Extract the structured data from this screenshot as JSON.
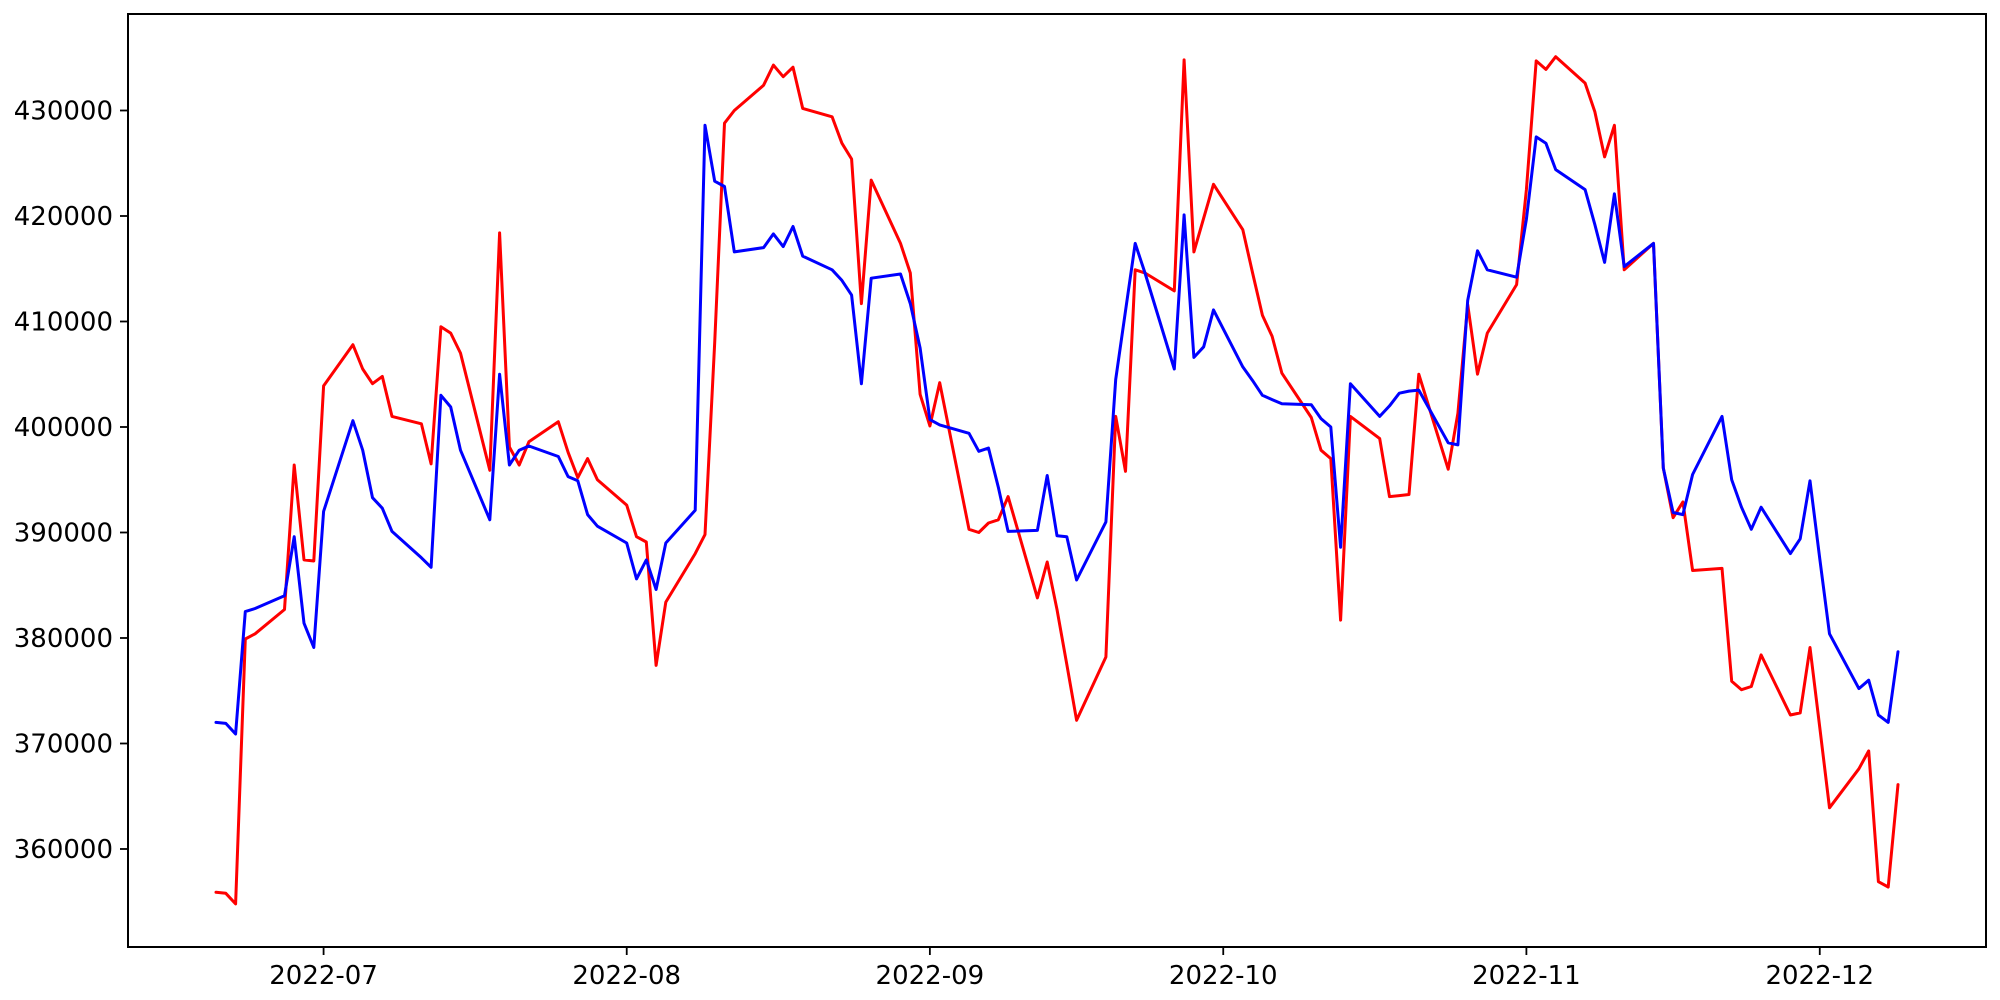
{
  "figure": {
    "background": "#ffffff",
    "axis_color": "#000000"
  },
  "chart_data": {
    "type": "line",
    "title": "",
    "xlabel": "",
    "ylabel": "",
    "grid": false,
    "legend": null,
    "xlim": [
      "2022-06-11",
      "2022-12-18"
    ],
    "ylim": [
      350710,
      439147
    ],
    "x_ticks": [
      {
        "date": "2022-07-01",
        "label": "2022-07"
      },
      {
        "date": "2022-08-01",
        "label": "2022-08"
      },
      {
        "date": "2022-09-01",
        "label": "2022-09"
      },
      {
        "date": "2022-10-01",
        "label": "2022-10"
      },
      {
        "date": "2022-11-01",
        "label": "2022-11"
      },
      {
        "date": "2022-12-01",
        "label": "2022-12"
      }
    ],
    "y_ticks": [
      {
        "value": 360000,
        "label": "360000"
      },
      {
        "value": 370000,
        "label": "370000"
      },
      {
        "value": 380000,
        "label": "380000"
      },
      {
        "value": 390000,
        "label": "390000"
      },
      {
        "value": 400000,
        "label": "400000"
      },
      {
        "value": 410000,
        "label": "410000"
      },
      {
        "value": 420000,
        "label": "420000"
      },
      {
        "value": 430000,
        "label": "430000"
      }
    ],
    "series": [
      {
        "name": "red-series",
        "color": "#ff0000",
        "points": [
          [
            "2022-06-20",
            355900
          ],
          [
            "2022-06-21",
            355800
          ],
          [
            "2022-06-22",
            354800
          ],
          [
            "2022-06-23",
            379900
          ],
          [
            "2022-06-24",
            380400
          ],
          [
            "2022-06-27",
            382700
          ],
          [
            "2022-06-28",
            396400
          ],
          [
            "2022-06-29",
            387400
          ],
          [
            "2022-06-30",
            387300
          ],
          [
            "2022-07-01",
            403900
          ],
          [
            "2022-07-04",
            407800
          ],
          [
            "2022-07-05",
            405500
          ],
          [
            "2022-07-06",
            404100
          ],
          [
            "2022-07-07",
            404800
          ],
          [
            "2022-07-08",
            401000
          ],
          [
            "2022-07-11",
            400300
          ],
          [
            "2022-07-12",
            396500
          ],
          [
            "2022-07-13",
            409500
          ],
          [
            "2022-07-14",
            408900
          ],
          [
            "2022-07-15",
            407000
          ],
          [
            "2022-07-18",
            395900
          ],
          [
            "2022-07-19",
            418400
          ],
          [
            "2022-07-20",
            398100
          ],
          [
            "2022-07-21",
            396400
          ],
          [
            "2022-07-22",
            398600
          ],
          [
            "2022-07-25",
            400500
          ],
          [
            "2022-07-26",
            397600
          ],
          [
            "2022-07-27",
            395200
          ],
          [
            "2022-07-28",
            397000
          ],
          [
            "2022-07-29",
            395000
          ],
          [
            "2022-08-01",
            392600
          ],
          [
            "2022-08-02",
            389600
          ],
          [
            "2022-08-03",
            389100
          ],
          [
            "2022-08-04",
            377400
          ],
          [
            "2022-08-05",
            383400
          ],
          [
            "2022-08-08",
            388000
          ],
          [
            "2022-08-09",
            389800
          ],
          [
            "2022-08-10",
            408000
          ],
          [
            "2022-08-11",
            428800
          ],
          [
            "2022-08-12",
            430000
          ],
          [
            "2022-08-15",
            432400
          ],
          [
            "2022-08-16",
            434300
          ],
          [
            "2022-08-17",
            433200
          ],
          [
            "2022-08-18",
            434100
          ],
          [
            "2022-08-19",
            430200
          ],
          [
            "2022-08-22",
            429400
          ],
          [
            "2022-08-23",
            426900
          ],
          [
            "2022-08-24",
            425400
          ],
          [
            "2022-08-25",
            411700
          ],
          [
            "2022-08-26",
            423400
          ],
          [
            "2022-08-29",
            417400
          ],
          [
            "2022-08-30",
            414600
          ],
          [
            "2022-08-31",
            403100
          ],
          [
            "2022-09-01",
            400100
          ],
          [
            "2022-09-02",
            404200
          ],
          [
            "2022-09-05",
            390300
          ],
          [
            "2022-09-06",
            390000
          ],
          [
            "2022-09-07",
            390900
          ],
          [
            "2022-09-08",
            391200
          ],
          [
            "2022-09-09",
            393400
          ],
          [
            "2022-09-12",
            383800
          ],
          [
            "2022-09-13",
            387200
          ],
          [
            "2022-09-14",
            382700
          ],
          [
            "2022-09-15",
            377500
          ],
          [
            "2022-09-16",
            372200
          ],
          [
            "2022-09-19",
            378200
          ],
          [
            "2022-09-20",
            401000
          ],
          [
            "2022-09-21",
            395800
          ],
          [
            "2022-09-22",
            414900
          ],
          [
            "2022-09-23",
            414600
          ],
          [
            "2022-09-26",
            412900
          ],
          [
            "2022-09-27",
            434800
          ],
          [
            "2022-09-28",
            416600
          ],
          [
            "2022-09-29",
            419800
          ],
          [
            "2022-09-30",
            423000
          ],
          [
            "2022-10-03",
            418700
          ],
          [
            "2022-10-04",
            414600
          ],
          [
            "2022-10-05",
            410600
          ],
          [
            "2022-10-06",
            408600
          ],
          [
            "2022-10-07",
            405100
          ],
          [
            "2022-10-10",
            400900
          ],
          [
            "2022-10-11",
            397800
          ],
          [
            "2022-10-12",
            397000
          ],
          [
            "2022-10-13",
            381700
          ],
          [
            "2022-10-14",
            401000
          ],
          [
            "2022-10-17",
            398900
          ],
          [
            "2022-10-18",
            393400
          ],
          [
            "2022-10-19",
            393500
          ],
          [
            "2022-10-20",
            393600
          ],
          [
            "2022-10-21",
            405000
          ],
          [
            "2022-10-24",
            396000
          ],
          [
            "2022-10-25",
            401300
          ],
          [
            "2022-10-26",
            411600
          ],
          [
            "2022-10-27",
            405000
          ],
          [
            "2022-10-28",
            408900
          ],
          [
            "2022-10-31",
            413500
          ],
          [
            "2022-11-01",
            422500
          ],
          [
            "2022-11-02",
            434700
          ],
          [
            "2022-11-03",
            433900
          ],
          [
            "2022-11-04",
            435100
          ],
          [
            "2022-11-07",
            432600
          ],
          [
            "2022-11-08",
            429900
          ],
          [
            "2022-11-09",
            425600
          ],
          [
            "2022-11-10",
            428600
          ],
          [
            "2022-11-11",
            414900
          ],
          [
            "2022-11-14",
            417400
          ],
          [
            "2022-11-15",
            396100
          ],
          [
            "2022-11-16",
            391400
          ],
          [
            "2022-11-17",
            392900
          ],
          [
            "2022-11-18",
            386400
          ],
          [
            "2022-11-21",
            386600
          ],
          [
            "2022-11-22",
            375900
          ],
          [
            "2022-11-23",
            375100
          ],
          [
            "2022-11-24",
            375400
          ],
          [
            "2022-11-25",
            378400
          ],
          [
            "2022-11-28",
            372700
          ],
          [
            "2022-11-29",
            372900
          ],
          [
            "2022-11-30",
            379100
          ],
          [
            "2022-12-01",
            371500
          ],
          [
            "2022-12-02",
            363900
          ],
          [
            "2022-12-05",
            367600
          ],
          [
            "2022-12-06",
            369300
          ],
          [
            "2022-12-07",
            356900
          ],
          [
            "2022-12-08",
            356400
          ],
          [
            "2022-12-09",
            366100
          ]
        ]
      },
      {
        "name": "blue-series",
        "color": "#0000ff",
        "points": [
          [
            "2022-06-20",
            372000
          ],
          [
            "2022-06-21",
            371900
          ],
          [
            "2022-06-22",
            370900
          ],
          [
            "2022-06-23",
            382500
          ],
          [
            "2022-06-24",
            382800
          ],
          [
            "2022-06-27",
            384000
          ],
          [
            "2022-06-28",
            389600
          ],
          [
            "2022-06-29",
            381400
          ],
          [
            "2022-06-30",
            379100
          ],
          [
            "2022-07-01",
            392000
          ],
          [
            "2022-07-04",
            400600
          ],
          [
            "2022-07-05",
            397800
          ],
          [
            "2022-07-06",
            393300
          ],
          [
            "2022-07-07",
            392300
          ],
          [
            "2022-07-08",
            390100
          ],
          [
            "2022-07-11",
            387600
          ],
          [
            "2022-07-12",
            386700
          ],
          [
            "2022-07-13",
            403000
          ],
          [
            "2022-07-14",
            401900
          ],
          [
            "2022-07-15",
            397800
          ],
          [
            "2022-07-18",
            391200
          ],
          [
            "2022-07-19",
            405000
          ],
          [
            "2022-07-20",
            396400
          ],
          [
            "2022-07-21",
            397800
          ],
          [
            "2022-07-22",
            398200
          ],
          [
            "2022-07-25",
            397200
          ],
          [
            "2022-07-26",
            395300
          ],
          [
            "2022-07-27",
            394900
          ],
          [
            "2022-07-28",
            391700
          ],
          [
            "2022-07-29",
            390600
          ],
          [
            "2022-08-01",
            389000
          ],
          [
            "2022-08-02",
            385600
          ],
          [
            "2022-08-03",
            387400
          ],
          [
            "2022-08-04",
            384600
          ],
          [
            "2022-08-05",
            389000
          ],
          [
            "2022-08-08",
            392100
          ],
          [
            "2022-08-09",
            428600
          ],
          [
            "2022-08-10",
            423300
          ],
          [
            "2022-08-11",
            422800
          ],
          [
            "2022-08-12",
            416600
          ],
          [
            "2022-08-15",
            417000
          ],
          [
            "2022-08-16",
            418300
          ],
          [
            "2022-08-17",
            417100
          ],
          [
            "2022-08-18",
            419000
          ],
          [
            "2022-08-19",
            416200
          ],
          [
            "2022-08-22",
            414900
          ],
          [
            "2022-08-23",
            413900
          ],
          [
            "2022-08-24",
            412500
          ],
          [
            "2022-08-25",
            404100
          ],
          [
            "2022-08-26",
            414100
          ],
          [
            "2022-08-29",
            414500
          ],
          [
            "2022-08-30",
            411700
          ],
          [
            "2022-08-31",
            407500
          ],
          [
            "2022-09-01",
            400700
          ],
          [
            "2022-09-02",
            400200
          ],
          [
            "2022-09-05",
            399400
          ],
          [
            "2022-09-06",
            397700
          ],
          [
            "2022-09-07",
            398000
          ],
          [
            "2022-09-08",
            394300
          ],
          [
            "2022-09-09",
            390100
          ],
          [
            "2022-09-12",
            390200
          ],
          [
            "2022-09-13",
            395400
          ],
          [
            "2022-09-14",
            389700
          ],
          [
            "2022-09-15",
            389600
          ],
          [
            "2022-09-16",
            385500
          ],
          [
            "2022-09-19",
            391000
          ],
          [
            "2022-09-20",
            404500
          ],
          [
            "2022-09-21",
            411000
          ],
          [
            "2022-09-22",
            417400
          ],
          [
            "2022-09-23",
            414600
          ],
          [
            "2022-09-26",
            405500
          ],
          [
            "2022-09-27",
            420100
          ],
          [
            "2022-09-28",
            406600
          ],
          [
            "2022-09-29",
            407600
          ],
          [
            "2022-09-30",
            411100
          ],
          [
            "2022-10-03",
            405700
          ],
          [
            "2022-10-04",
            404400
          ],
          [
            "2022-10-05",
            403000
          ],
          [
            "2022-10-06",
            402600
          ],
          [
            "2022-10-07",
            402200
          ],
          [
            "2022-10-10",
            402100
          ],
          [
            "2022-10-11",
            400800
          ],
          [
            "2022-10-12",
            400000
          ],
          [
            "2022-10-13",
            388600
          ],
          [
            "2022-10-14",
            404100
          ],
          [
            "2022-10-17",
            401000
          ],
          [
            "2022-10-18",
            402000
          ],
          [
            "2022-10-19",
            403200
          ],
          [
            "2022-10-20",
            403400
          ],
          [
            "2022-10-21",
            403500
          ],
          [
            "2022-10-24",
            398500
          ],
          [
            "2022-10-25",
            398300
          ],
          [
            "2022-10-26",
            412000
          ],
          [
            "2022-10-27",
            416700
          ],
          [
            "2022-10-28",
            414900
          ],
          [
            "2022-10-31",
            414200
          ],
          [
            "2022-11-01",
            419700
          ],
          [
            "2022-11-02",
            427500
          ],
          [
            "2022-11-03",
            426900
          ],
          [
            "2022-11-04",
            424400
          ],
          [
            "2022-11-07",
            422500
          ],
          [
            "2022-11-08",
            419200
          ],
          [
            "2022-11-09",
            415600
          ],
          [
            "2022-11-10",
            422100
          ],
          [
            "2022-11-11",
            415200
          ],
          [
            "2022-11-14",
            417400
          ],
          [
            "2022-11-15",
            396100
          ],
          [
            "2022-11-16",
            391900
          ],
          [
            "2022-11-17",
            391700
          ],
          [
            "2022-11-18",
            395500
          ],
          [
            "2022-11-21",
            401000
          ],
          [
            "2022-11-22",
            395000
          ],
          [
            "2022-11-23",
            392400
          ],
          [
            "2022-11-24",
            390300
          ],
          [
            "2022-11-25",
            392400
          ],
          [
            "2022-11-28",
            388000
          ],
          [
            "2022-11-29",
            389400
          ],
          [
            "2022-11-30",
            394900
          ],
          [
            "2022-12-01",
            387500
          ],
          [
            "2022-12-02",
            380400
          ],
          [
            "2022-12-05",
            375200
          ],
          [
            "2022-12-06",
            376000
          ],
          [
            "2022-12-07",
            372700
          ],
          [
            "2022-12-08",
            372000
          ],
          [
            "2022-12-09",
            378700
          ]
        ]
      }
    ]
  }
}
